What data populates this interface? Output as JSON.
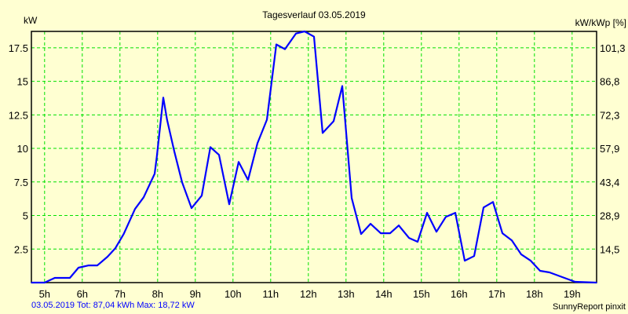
{
  "chart_data": {
    "type": "line",
    "title": "Tagesverlauf 03.05.2019",
    "ylabel": "kW",
    "y2label": "kW/kWp [%]",
    "xlabel": "",
    "xlim": [
      4.65,
      19.65
    ],
    "ylim": [
      0,
      18.72
    ],
    "grid": true,
    "x_ticks": [
      5,
      6,
      7,
      8,
      9,
      10,
      11,
      12,
      13,
      14,
      15,
      16,
      17,
      18,
      19
    ],
    "x_tick_labels": [
      "5h",
      "6h",
      "7h",
      "8h",
      "9h",
      "10h",
      "11h",
      "12h",
      "13h",
      "14h",
      "15h",
      "16h",
      "17h",
      "18h",
      "19h"
    ],
    "y_ticks": [
      2.5,
      5,
      7.5,
      10,
      12.5,
      15,
      17.5
    ],
    "y_tick_labels": [
      "2.5",
      "5",
      "7.5",
      "10",
      "12.5",
      "15",
      "17.5"
    ],
    "y2_tick_labels": [
      "14,5",
      "28,9",
      "43,4",
      "57,9",
      "72,3",
      "86,8",
      "101,3"
    ],
    "series": [
      {
        "name": "kW",
        "color": "#0000ff",
        "x": [
          4.65,
          5.0,
          5.27,
          5.67,
          5.9,
          6.17,
          6.4,
          6.67,
          6.88,
          7.1,
          7.4,
          7.63,
          7.92,
          7.98,
          8.15,
          8.25,
          8.44,
          8.65,
          8.9,
          9.17,
          9.4,
          9.63,
          9.9,
          10.15,
          10.4,
          10.65,
          10.9,
          11.15,
          11.38,
          11.67,
          11.9,
          12.15,
          12.38,
          12.67,
          12.9,
          13.15,
          13.4,
          13.65,
          13.92,
          14.17,
          14.4,
          14.67,
          14.9,
          15.15,
          15.4,
          15.65,
          15.9,
          16.15,
          16.4,
          16.65,
          16.9,
          17.15,
          17.4,
          17.65,
          17.9,
          18.15,
          18.4,
          19.08,
          19.65
        ],
        "y": [
          0,
          0,
          0.35,
          0.35,
          1.11,
          1.28,
          1.28,
          1.93,
          2.57,
          3.62,
          5.49,
          6.36,
          8.11,
          9.4,
          13.78,
          12.14,
          9.81,
          7.47,
          5.55,
          6.48,
          10.1,
          9.52,
          5.84,
          8.99,
          7.65,
          10.39,
          12.14,
          17.75,
          17.4,
          18.56,
          18.72,
          18.33,
          11.15,
          12.03,
          14.65,
          6.3,
          3.62,
          4.38,
          3.68,
          3.68,
          4.26,
          3.33,
          3.04,
          5.2,
          3.79,
          4.9,
          5.2,
          1.63,
          1.98,
          5.6,
          6.01,
          3.68,
          3.15,
          2.1,
          1.63,
          0.88,
          0.76,
          0.06,
          0
        ]
      }
    ],
    "colors": {
      "background": "#ffffd2",
      "grid": "#00e000",
      "footer_text": "#0000ff"
    }
  },
  "footer": {
    "summary": "03.05.2019 Tot: 87,04 kWh Max: 18,72 kW",
    "credit": "SunnyReport pinxit"
  }
}
